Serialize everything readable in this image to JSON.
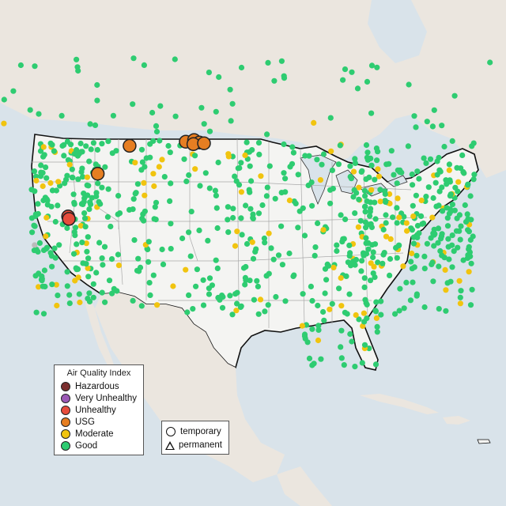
{
  "colors": {
    "water": "#d9e3ea",
    "land_us": "#f4f4f2",
    "land_other": "#ebe6df",
    "border": "#111111",
    "state_line": "#a9a9a9"
  },
  "legend": {
    "title": "Air Quality Index",
    "items": [
      {
        "label": "Hazardous",
        "color": "#7b2e2e"
      },
      {
        "label": "Very Unhealthy",
        "color": "#9b59b6"
      },
      {
        "label": "Unhealthy",
        "color": "#e74c3c"
      },
      {
        "label": "USG",
        "color": "#e67e22"
      },
      {
        "label": "Moderate",
        "color": "#f1c40f"
      },
      {
        "label": "Good",
        "color": "#2ecc71"
      }
    ]
  },
  "type_legend": {
    "items": [
      {
        "label": "temporary",
        "shape": "circle"
      },
      {
        "label": "permanent",
        "shape": "triangle"
      }
    ]
  },
  "large_markers": [
    {
      "category": "USG",
      "lon": -112.3,
      "lat": 48.1
    },
    {
      "category": "USG",
      "lon": -116.5,
      "lat": 44.7
    },
    {
      "category": "USG",
      "lon": -104.9,
      "lat": 48.6
    },
    {
      "category": "USG",
      "lon": -103.8,
      "lat": 48.8
    },
    {
      "category": "USG",
      "lon": -103.1,
      "lat": 48.5
    },
    {
      "category": "USG",
      "lon": -103.9,
      "lat": 48.3
    },
    {
      "category": "USG",
      "lon": -102.5,
      "lat": 48.4
    },
    {
      "category": "Unhealthy",
      "lon": -120.4,
      "lat": 39.5
    },
    {
      "category": "Unhealthy",
      "lon": -120.3,
      "lat": 39.2
    }
  ]
}
